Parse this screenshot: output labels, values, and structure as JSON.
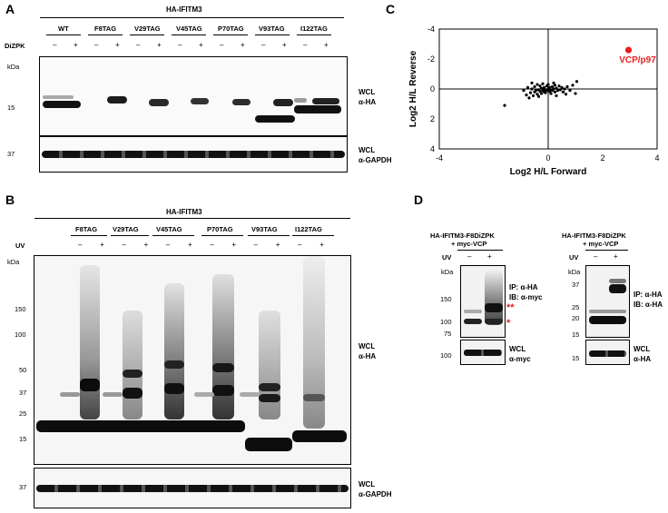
{
  "panel_letters": {
    "a": "A",
    "b": "B",
    "c": "C",
    "d": "D"
  },
  "panel_a": {
    "title": "HA-IFITM3",
    "treatment": "DiZPK",
    "groups": [
      "WT",
      "F8TAG",
      "V29TAG",
      "V45TAG",
      "P70TAG",
      "V93TAG",
      "I122TAG"
    ],
    "signs": [
      "–",
      "+"
    ],
    "kda": "kDa",
    "markers_top": [
      "15"
    ],
    "markers_bottom": [
      "37"
    ],
    "blot_top_label": [
      "WCL",
      "α-HA"
    ],
    "blot_bottom_label": [
      "WCL",
      "α-GAPDH"
    ]
  },
  "panel_b": {
    "title": "HA-IFITM3",
    "treatment": "UV",
    "groups": [
      "F8TAG",
      "V29TAG",
      "V45TAG",
      "P70TAG",
      "V93TAG",
      "I122TAG"
    ],
    "signs": [
      "–",
      "+"
    ],
    "kda": "kDa",
    "markers_top": [
      "150",
      "100",
      "50",
      "37",
      "25",
      "15"
    ],
    "markers_bottom": [
      "37"
    ],
    "blot_top_label": [
      "WCL",
      "α-HA"
    ],
    "blot_bottom_label": [
      "WCL",
      "α-GAPDH"
    ]
  },
  "panel_c": {
    "chart_data": {
      "type": "scatter",
      "xlabel": "Log2 H/L Forward",
      "ylabel": "Log2 H/L Reverse",
      "xlim": [
        -4,
        4
      ],
      "ylim": [
        -4,
        4
      ],
      "y_inverted": true,
      "xticks": [
        "-4",
        "0",
        "2",
        "4"
      ],
      "yticks": [
        "-4",
        "-2",
        "0",
        "2",
        "4"
      ],
      "highlight": {
        "name": "VCP/p97",
        "x": 2.95,
        "y": -2.6,
        "color": "#e8201e"
      },
      "points": [
        [
          -1.6,
          1.1
        ],
        [
          -0.9,
          0.1
        ],
        [
          -0.8,
          0.4
        ],
        [
          -0.75,
          -0.1
        ],
        [
          -0.7,
          0.6
        ],
        [
          -0.65,
          0.25
        ],
        [
          -0.6,
          0.0
        ],
        [
          -0.55,
          0.45
        ],
        [
          -0.5,
          -0.15
        ],
        [
          -0.5,
          0.2
        ],
        [
          -0.45,
          0.1
        ],
        [
          -0.4,
          -0.3
        ],
        [
          -0.4,
          0.35
        ],
        [
          -0.35,
          0.05
        ],
        [
          -0.3,
          -0.2
        ],
        [
          -0.3,
          0.15
        ],
        [
          -0.25,
          0.3
        ],
        [
          -0.25,
          -0.05
        ],
        [
          -0.2,
          0.1
        ],
        [
          -0.2,
          -0.35
        ],
        [
          -0.15,
          0.2
        ],
        [
          -0.15,
          -0.1
        ],
        [
          -0.1,
          0.05
        ],
        [
          -0.1,
          0.25
        ],
        [
          -0.05,
          -0.2
        ],
        [
          -0.05,
          0.1
        ],
        [
          0.0,
          0.0
        ],
        [
          0.0,
          -0.3
        ],
        [
          0.05,
          0.15
        ],
        [
          0.05,
          -0.1
        ],
        [
          0.1,
          0.05
        ],
        [
          0.1,
          0.3
        ],
        [
          0.15,
          -0.15
        ],
        [
          0.15,
          0.1
        ],
        [
          0.2,
          0.0
        ],
        [
          0.2,
          -0.4
        ],
        [
          0.25,
          0.2
        ],
        [
          0.3,
          -0.05
        ],
        [
          0.35,
          0.1
        ],
        [
          0.4,
          -0.2
        ],
        [
          0.45,
          0.05
        ],
        [
          0.5,
          -0.1
        ],
        [
          0.55,
          0.2
        ],
        [
          0.6,
          0.0
        ],
        [
          0.7,
          -0.15
        ],
        [
          0.8,
          0.1
        ],
        [
          0.9,
          -0.25
        ],
        [
          1.05,
          -0.5
        ],
        [
          1.0,
          0.3
        ],
        [
          0.3,
          0.45
        ],
        [
          -0.6,
          -0.4
        ],
        [
          0.25,
          -0.25
        ],
        [
          -0.35,
          0.5
        ],
        [
          0.65,
          0.35
        ]
      ]
    }
  },
  "panel_d": {
    "left": {
      "title": [
        "HA-IFITM3-F8DiZPK",
        "+ myc-VCP"
      ],
      "treatment": "UV",
      "signs": [
        "–",
        "+"
      ],
      "kda": "kDa",
      "markers_top": [
        "150",
        "100",
        "75"
      ],
      "markers_bottom": [
        "100"
      ],
      "blot_top_label": [
        "IP: α-HA",
        "IB: α-myc"
      ],
      "blot_bottom_label": [
        "WCL",
        "α-myc"
      ],
      "star_double": "**",
      "star_single": "*",
      "star_color": "#e8201e"
    },
    "right": {
      "title": [
        "HA-IFITM3-F8DiZPK",
        "+ myc-VCP"
      ],
      "treatment": "UV",
      "signs": [
        "–",
        "+"
      ],
      "kda": "kDa",
      "markers_top": [
        "37",
        "25",
        "20",
        "15"
      ],
      "markers_bottom": [
        "15"
      ],
      "blot_top_label": [
        "IP: α-HA",
        "IB: α-HA"
      ],
      "blot_bottom_label": [
        "WCL",
        "α-HA"
      ]
    }
  }
}
